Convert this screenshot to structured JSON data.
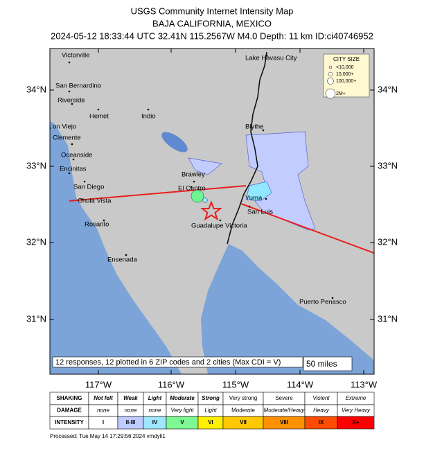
{
  "header": {
    "title": "USGS Community Internet Intensity Map",
    "subtitle": "BAJA CALIFORNIA, MEXICO",
    "info": "2024-05-12 18:33:44 UTC 32.41N 115.2567W M4.0 Depth: 11 km ID:ci40746952"
  },
  "map": {
    "cities": [
      "Victorville",
      "San Bernardino",
      "Riverside",
      "Hemet",
      "Indio",
      "on Viejo",
      "Clemente",
      "Oceanside",
      "Encinitas",
      "San Diego",
      "Chula Vista",
      "Rosarito",
      "Ensenada",
      "Brawley",
      "El Centro",
      "Yuma",
      "San Luis",
      "Guadalupe Victoria",
      "Blythe",
      "Lake Havasu City",
      "Puerto Penasco"
    ],
    "longitude_labels": [
      "117°W",
      "116°W",
      "115°W",
      "114°W",
      "113°W"
    ],
    "latitude_labels": [
      "34°N",
      "33°N",
      "32°N",
      "31°N"
    ],
    "legend_title": "CITY SIZE",
    "legend_items": [
      "<10,000",
      "10,000+",
      "100,000+",
      "2M+"
    ],
    "summary": "12 responses, 12 plotted in 6 ZIP codes and 2 cities (Max CDI = V)",
    "scale": "50 miles"
  },
  "intensity_table": {
    "row_labels": [
      "SHAKING",
      "DAMAGE",
      "INTENSITY"
    ],
    "shaking": [
      "Not felt",
      "Weak",
      "Light",
      "Moderate",
      "Strong",
      "Very strong",
      "Severe",
      "Violent",
      "Extreme"
    ],
    "damage": [
      "none",
      "none",
      "none",
      "Very light",
      "Light",
      "Moderate",
      "Moderate/Heavy",
      "Heavy",
      "Very Heavy"
    ],
    "intensity": [
      "I",
      "II-III",
      "IV",
      "V",
      "VI",
      "VII",
      "VIII",
      "IX",
      "X+"
    ]
  },
  "footer": "Processed: Tue May 14 17:29:56 2024 vmdyli1"
}
